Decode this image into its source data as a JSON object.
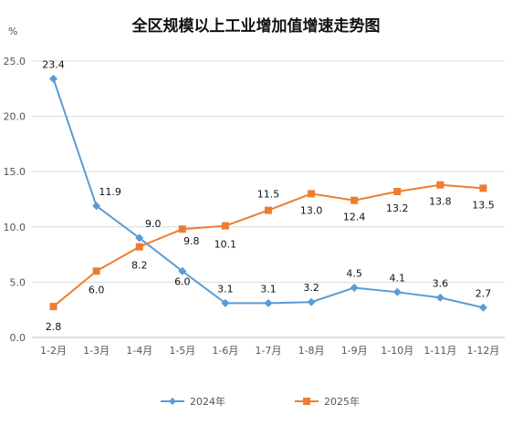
{
  "chart_data": {
    "type": "line",
    "title": "全区规模以上工业增加值增速走势图",
    "ylabel": "%",
    "xlabel": "",
    "categories": [
      "1-2月",
      "1-3月",
      "1-4月",
      "1-5月",
      "1-6月",
      "1-7月",
      "1-8月",
      "1-9月",
      "1-10月",
      "1-11月",
      "1-12月"
    ],
    "ylim": [
      0,
      25
    ],
    "yticks": [
      "0.0",
      "5.0",
      "10.0",
      "15.0",
      "20.0",
      "25.0"
    ],
    "grid": "horizontal",
    "legend_position": "bottom",
    "series": [
      {
        "name": "2024年",
        "marker": "diamond",
        "color": "#5B9BD5",
        "values": [
          23.4,
          11.9,
          9.0,
          6.0,
          3.1,
          3.1,
          3.2,
          4.5,
          4.1,
          3.6,
          2.7
        ],
        "labels": [
          "23.4",
          "11.9",
          "9.0",
          "6.0",
          "3.1",
          "3.1",
          "3.2",
          "4.5",
          "4.1",
          "3.6",
          "2.7"
        ]
      },
      {
        "name": "2025年",
        "marker": "square",
        "color": "#ED7D31",
        "values": [
          2.8,
          6.0,
          8.2,
          9.8,
          10.1,
          11.5,
          13.0,
          12.4,
          13.2,
          13.8,
          13.5
        ],
        "labels": [
          "2.8",
          "6.0",
          "8.2",
          "9.8",
          "10.1",
          "11.5",
          "13.0",
          "12.4",
          "13.2",
          "13.8",
          "13.5"
        ]
      }
    ]
  }
}
